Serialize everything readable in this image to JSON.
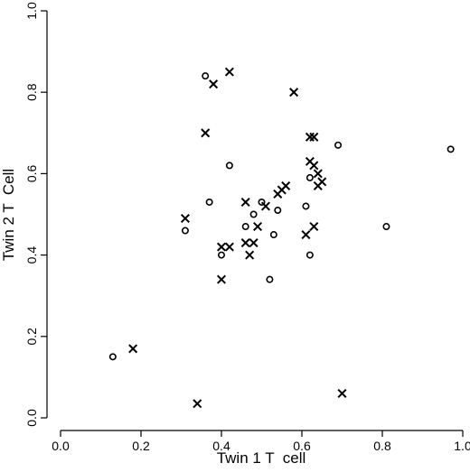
{
  "chart_data": {
    "type": "scatter",
    "xlabel": "Twin 1 T  cell",
    "ylabel": "Twin 2 T  Cell",
    "xlim": [
      0.0,
      1.0
    ],
    "ylim": [
      0.0,
      1.0
    ],
    "xticks": [
      "0.0",
      "0.2",
      "0.4",
      "0.6",
      "0.8",
      "1.0"
    ],
    "yticks": [
      "0.0",
      "0.2",
      "0.4",
      "0.6",
      "0.8",
      "1.0"
    ],
    "grid": false,
    "series": [
      {
        "marker": "x",
        "points": [
          [
            0.18,
            0.17
          ],
          [
            0.31,
            0.49
          ],
          [
            0.34,
            0.035
          ],
          [
            0.36,
            0.7
          ],
          [
            0.38,
            0.82
          ],
          [
            0.4,
            0.34
          ],
          [
            0.4,
            0.42
          ],
          [
            0.42,
            0.85
          ],
          [
            0.42,
            0.42
          ],
          [
            0.46,
            0.53
          ],
          [
            0.46,
            0.43
          ],
          [
            0.47,
            0.4
          ],
          [
            0.48,
            0.43
          ],
          [
            0.49,
            0.47
          ],
          [
            0.51,
            0.52
          ],
          [
            0.54,
            0.55
          ],
          [
            0.55,
            0.56
          ],
          [
            0.56,
            0.57
          ],
          [
            0.58,
            0.8
          ],
          [
            0.61,
            0.45
          ],
          [
            0.62,
            0.69
          ],
          [
            0.62,
            0.63
          ],
          [
            0.63,
            0.47
          ],
          [
            0.63,
            0.69
          ],
          [
            0.63,
            0.62
          ],
          [
            0.64,
            0.6
          ],
          [
            0.64,
            0.57
          ],
          [
            0.65,
            0.58
          ],
          [
            0.7,
            0.06
          ]
        ]
      },
      {
        "marker": "o",
        "points": [
          [
            0.13,
            0.15
          ],
          [
            0.31,
            0.46
          ],
          [
            0.36,
            0.84
          ],
          [
            0.37,
            0.53
          ],
          [
            0.4,
            0.4
          ],
          [
            0.42,
            0.62
          ],
          [
            0.46,
            0.47
          ],
          [
            0.48,
            0.5
          ],
          [
            0.5,
            0.53
          ],
          [
            0.52,
            0.34
          ],
          [
            0.53,
            0.45
          ],
          [
            0.54,
            0.51
          ],
          [
            0.61,
            0.52
          ],
          [
            0.62,
            0.4
          ],
          [
            0.62,
            0.59
          ],
          [
            0.69,
            0.67
          ],
          [
            0.81,
            0.47
          ],
          [
            0.97,
            0.66
          ]
        ]
      }
    ]
  }
}
